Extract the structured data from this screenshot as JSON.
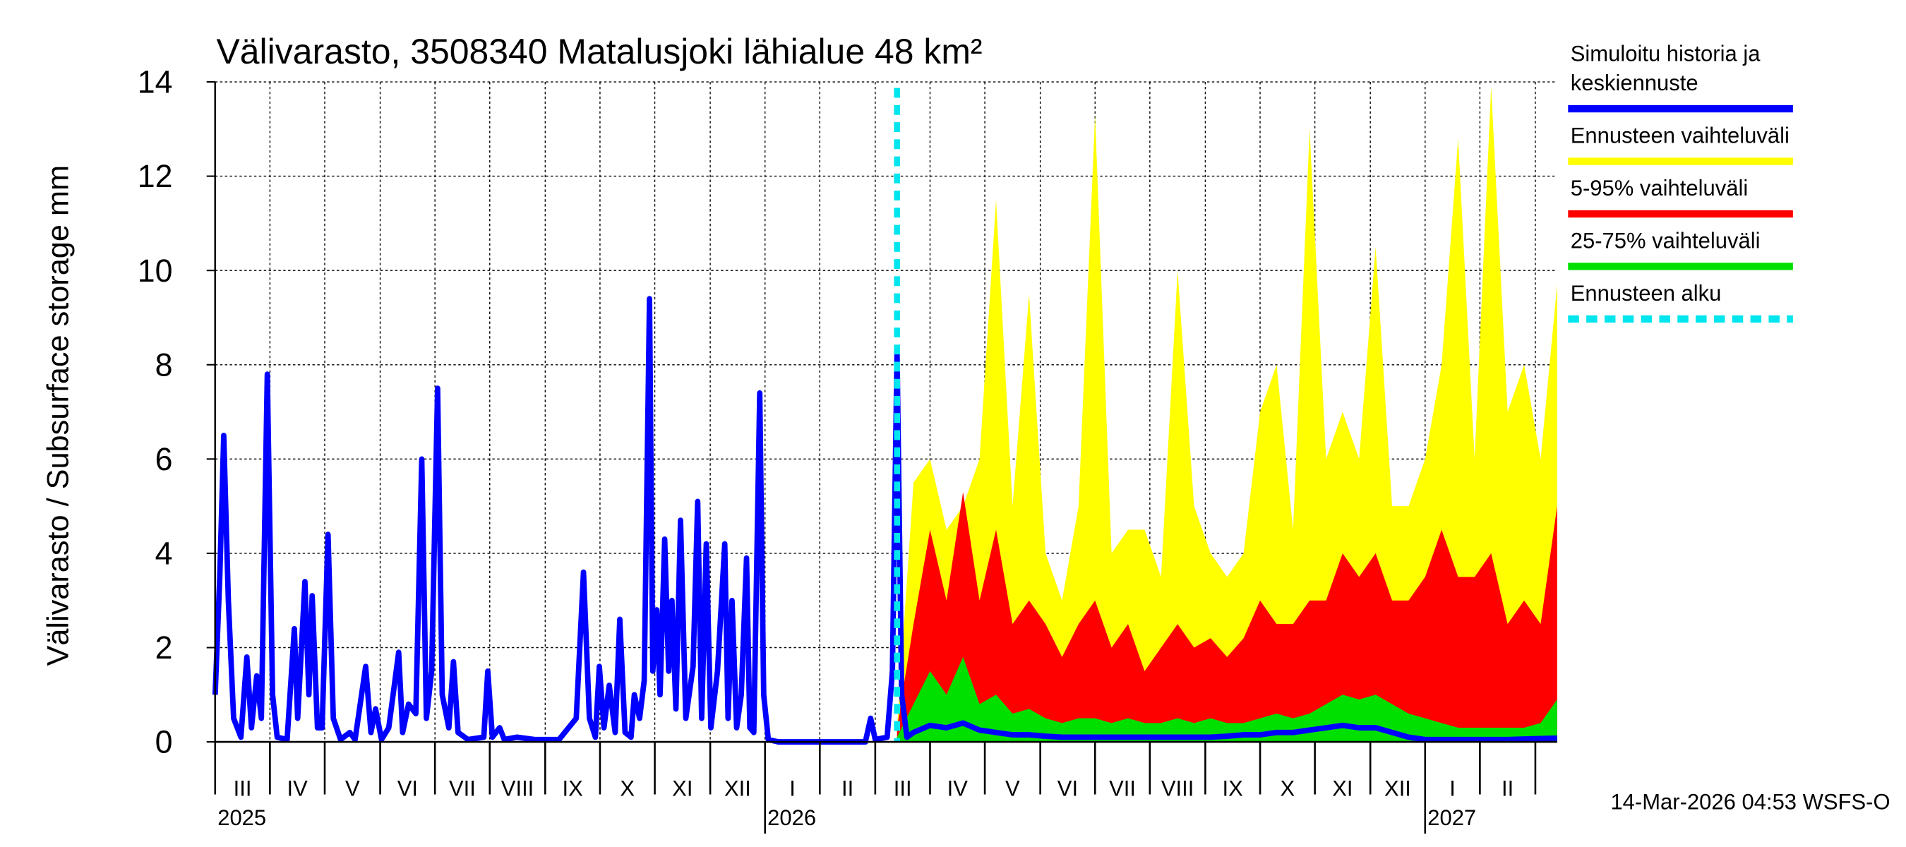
{
  "chart_data": {
    "type": "line",
    "title": "Välivarasto, 3508340 Matalusjoki lähialue 48 km²",
    "y_label": "Välivarasto / Subsurface storage  mm",
    "footer": "14-Mar-2026 04:53 WSFS-O",
    "xlim": [
      2025.167,
      2027.2
    ],
    "ylim": [
      0,
      14
    ],
    "yticks": [
      0,
      2,
      4,
      6,
      8,
      10,
      12,
      14
    ],
    "grid": true,
    "xticks": [
      {
        "value": 2025.167,
        "label": "III"
      },
      {
        "value": 2025.25,
        "label": "IV"
      },
      {
        "value": 2025.333,
        "label": "V"
      },
      {
        "value": 2025.417,
        "label": "VI"
      },
      {
        "value": 2025.5,
        "label": "VII"
      },
      {
        "value": 2025.583,
        "label": "VIII"
      },
      {
        "value": 2025.667,
        "label": "IX"
      },
      {
        "value": 2025.75,
        "label": "X"
      },
      {
        "value": 2025.833,
        "label": "XI"
      },
      {
        "value": 2025.917,
        "label": "XII"
      },
      {
        "value": 2026.0,
        "label": "I"
      },
      {
        "value": 2026.083,
        "label": "II"
      },
      {
        "value": 2026.167,
        "label": "III"
      },
      {
        "value": 2026.25,
        "label": "IV"
      },
      {
        "value": 2026.333,
        "label": "V"
      },
      {
        "value": 2026.417,
        "label": "VI"
      },
      {
        "value": 2026.5,
        "label": "VII"
      },
      {
        "value": 2026.583,
        "label": "VIII"
      },
      {
        "value": 2026.667,
        "label": "IX"
      },
      {
        "value": 2026.75,
        "label": "X"
      },
      {
        "value": 2026.833,
        "label": "XI"
      },
      {
        "value": 2026.917,
        "label": "XII"
      },
      {
        "value": 2027.0,
        "label": "I"
      },
      {
        "value": 2027.083,
        "label": "II"
      },
      {
        "value": 2027.167,
        "label": null
      }
    ],
    "year_labels": [
      {
        "value": 2025.167,
        "label": "2025"
      },
      {
        "value": 2026.0,
        "label": "2026"
      },
      {
        "value": 2027.0,
        "label": "2027"
      }
    ],
    "forecast_start": {
      "name": "Ennusteen alku",
      "x": 2026.2,
      "color": "#00e5ee"
    },
    "x": [
      2026.2,
      2026.225,
      2026.25,
      2026.275,
      2026.3,
      2026.325,
      2026.35,
      2026.375,
      2026.4,
      2026.425,
      2026.45,
      2026.475,
      2026.5,
      2026.525,
      2026.55,
      2026.575,
      2026.6,
      2026.625,
      2026.65,
      2026.675,
      2026.7,
      2026.725,
      2026.75,
      2026.775,
      2026.8,
      2026.825,
      2026.85,
      2026.875,
      2026.9,
      2026.925,
      2026.95,
      2026.975,
      2027.0,
      2027.025,
      2027.05,
      2027.075,
      2027.1,
      2027.125,
      2027.15,
      2027.175,
      2027.2
    ],
    "series": [
      {
        "name": "Simuloitu historia ja keskiennuste",
        "color": "#0000ff",
        "kind": "line",
        "x": [
          2025.167,
          2025.174,
          2025.18,
          2025.187,
          2025.195,
          2025.206,
          2025.215,
          2025.222,
          2025.23,
          2025.237,
          2025.246,
          2025.254,
          2025.261,
          2025.276,
          2025.287,
          2025.292,
          2025.303,
          2025.309,
          2025.314,
          2025.322,
          2025.329,
          2025.338,
          2025.346,
          2025.357,
          2025.371,
          2025.379,
          2025.395,
          2025.403,
          2025.41,
          2025.419,
          2025.43,
          2025.445,
          2025.451,
          2025.46,
          2025.471,
          2025.48,
          2025.487,
          2025.495,
          2025.504,
          2025.511,
          2025.521,
          2025.528,
          2025.535,
          2025.55,
          2025.574,
          2025.58,
          2025.587,
          2025.598,
          2025.605,
          2025.624,
          2025.651,
          2025.688,
          2025.714,
          2025.725,
          2025.734,
          2025.743,
          2025.749,
          2025.756,
          2025.764,
          2025.773,
          2025.78,
          2025.788,
          2025.797,
          2025.802,
          2025.81,
          2025.817,
          2025.825,
          2025.83,
          2025.836,
          2025.841,
          2025.848,
          2025.854,
          2025.859,
          2025.865,
          2025.872,
          2025.88,
          2025.891,
          2025.898,
          2025.904,
          2025.911,
          2025.918,
          2025.928,
          2025.939,
          2025.944,
          2025.95,
          2025.957,
          2025.964,
          2025.972,
          2025.977,
          2025.983,
          2025.992,
          2025.998,
          2026.005,
          2026.02,
          2026.13,
          2026.152,
          2026.16,
          2026.167,
          2026.185,
          2026.193,
          2026.2,
          2026.207,
          2026.215,
          2026.225,
          2026.25,
          2026.275,
          2026.3,
          2026.325,
          2026.35,
          2026.375,
          2026.4,
          2026.425,
          2026.45,
          2026.475,
          2026.5,
          2026.525,
          2026.55,
          2026.575,
          2026.6,
          2026.625,
          2026.65,
          2026.675,
          2026.7,
          2026.725,
          2026.75,
          2026.775,
          2026.8,
          2026.825,
          2026.85,
          2026.875,
          2026.9,
          2026.925,
          2026.95,
          2026.975,
          2027.0,
          2027.025,
          2027.05,
          2027.075,
          2027.1,
          2027.125,
          2027.15,
          2027.175,
          2027.2
        ],
        "values": [
          1.0,
          3.5,
          6.5,
          3.0,
          0.5,
          0.1,
          1.8,
          0.3,
          1.4,
          0.5,
          7.8,
          1.0,
          0.1,
          0.05,
          2.4,
          0.5,
          3.4,
          1.0,
          3.1,
          0.3,
          0.3,
          4.4,
          0.5,
          0.05,
          0.2,
          0.05,
          1.6,
          0.2,
          0.7,
          0.05,
          0.3,
          1.9,
          0.2,
          0.8,
          0.6,
          6.0,
          0.5,
          1.5,
          7.5,
          1.0,
          0.3,
          1.7,
          0.2,
          0.05,
          0.1,
          1.5,
          0.1,
          0.3,
          0.05,
          0.1,
          0.05,
          0.05,
          0.5,
          3.6,
          0.5,
          0.1,
          1.6,
          0.3,
          1.2,
          0.2,
          2.6,
          0.2,
          0.1,
          1.0,
          0.5,
          1.3,
          9.4,
          1.5,
          2.8,
          1.0,
          4.3,
          1.5,
          3.0,
          0.7,
          4.7,
          0.5,
          1.6,
          5.1,
          0.5,
          4.2,
          0.3,
          1.5,
          4.2,
          0.5,
          3.0,
          0.3,
          1.0,
          3.9,
          0.3,
          0.2,
          7.4,
          1.0,
          0.05,
          0,
          0,
          0,
          0.5,
          0.05,
          0.1,
          1.5,
          8.3,
          1.0,
          0.1,
          0.2,
          0.35,
          0.3,
          0.4,
          0.25,
          0.2,
          0.15,
          0.15,
          0.12,
          0.1,
          0.1,
          0.1,
          0.1,
          0.1,
          0.1,
          0.1,
          0.1,
          0.1,
          0.1,
          0.12,
          0.15,
          0.15,
          0.2,
          0.2,
          0.25,
          0.3,
          0.35,
          0.3,
          0.3,
          0.2,
          0.1,
          0.05,
          0.05,
          0.05,
          0.05,
          0.05,
          0.05,
          0.06,
          0.07,
          0.08
        ]
      },
      {
        "name": "Ennusteen vaihteluväli",
        "color": "#ffff00",
        "kind": "band",
        "values": [
          0.3,
          5.5,
          6,
          4.5,
          5,
          6,
          11.5,
          5,
          9.5,
          4,
          3,
          5,
          13.3,
          4,
          4.5,
          4.5,
          3.5,
          10,
          5,
          4,
          3.5,
          4,
          7,
          8,
          4.5,
          13,
          6,
          7,
          6,
          10.5,
          5,
          5,
          6,
          8,
          12.8,
          6,
          13.9,
          7,
          8,
          6,
          9.7
        ]
      },
      {
        "name": "5-95% vaihteluväli",
        "color": "#ff0000",
        "kind": "band",
        "values": [
          0.3,
          2.5,
          4.5,
          3,
          5.3,
          3,
          4.5,
          2.5,
          3,
          2.5,
          1.8,
          2.5,
          3,
          2,
          2.5,
          1.5,
          2,
          2.5,
          2,
          2.2,
          1.8,
          2.2,
          3,
          2.5,
          2.5,
          3,
          3,
          4,
          3.5,
          4,
          3,
          3,
          3.5,
          4.5,
          3.5,
          3.5,
          4,
          2.5,
          3,
          2.5,
          5
        ]
      },
      {
        "name": "25-75% vaihteluväli",
        "color": "#00e000",
        "kind": "band",
        "values": [
          0.1,
          0.8,
          1.5,
          1,
          1.8,
          0.8,
          1,
          0.6,
          0.7,
          0.5,
          0.4,
          0.5,
          0.5,
          0.4,
          0.5,
          0.4,
          0.4,
          0.5,
          0.4,
          0.5,
          0.4,
          0.4,
          0.5,
          0.6,
          0.5,
          0.6,
          0.8,
          1,
          0.9,
          1,
          0.8,
          0.6,
          0.5,
          0.4,
          0.3,
          0.3,
          0.3,
          0.3,
          0.3,
          0.4,
          0.9
        ]
      }
    ]
  }
}
